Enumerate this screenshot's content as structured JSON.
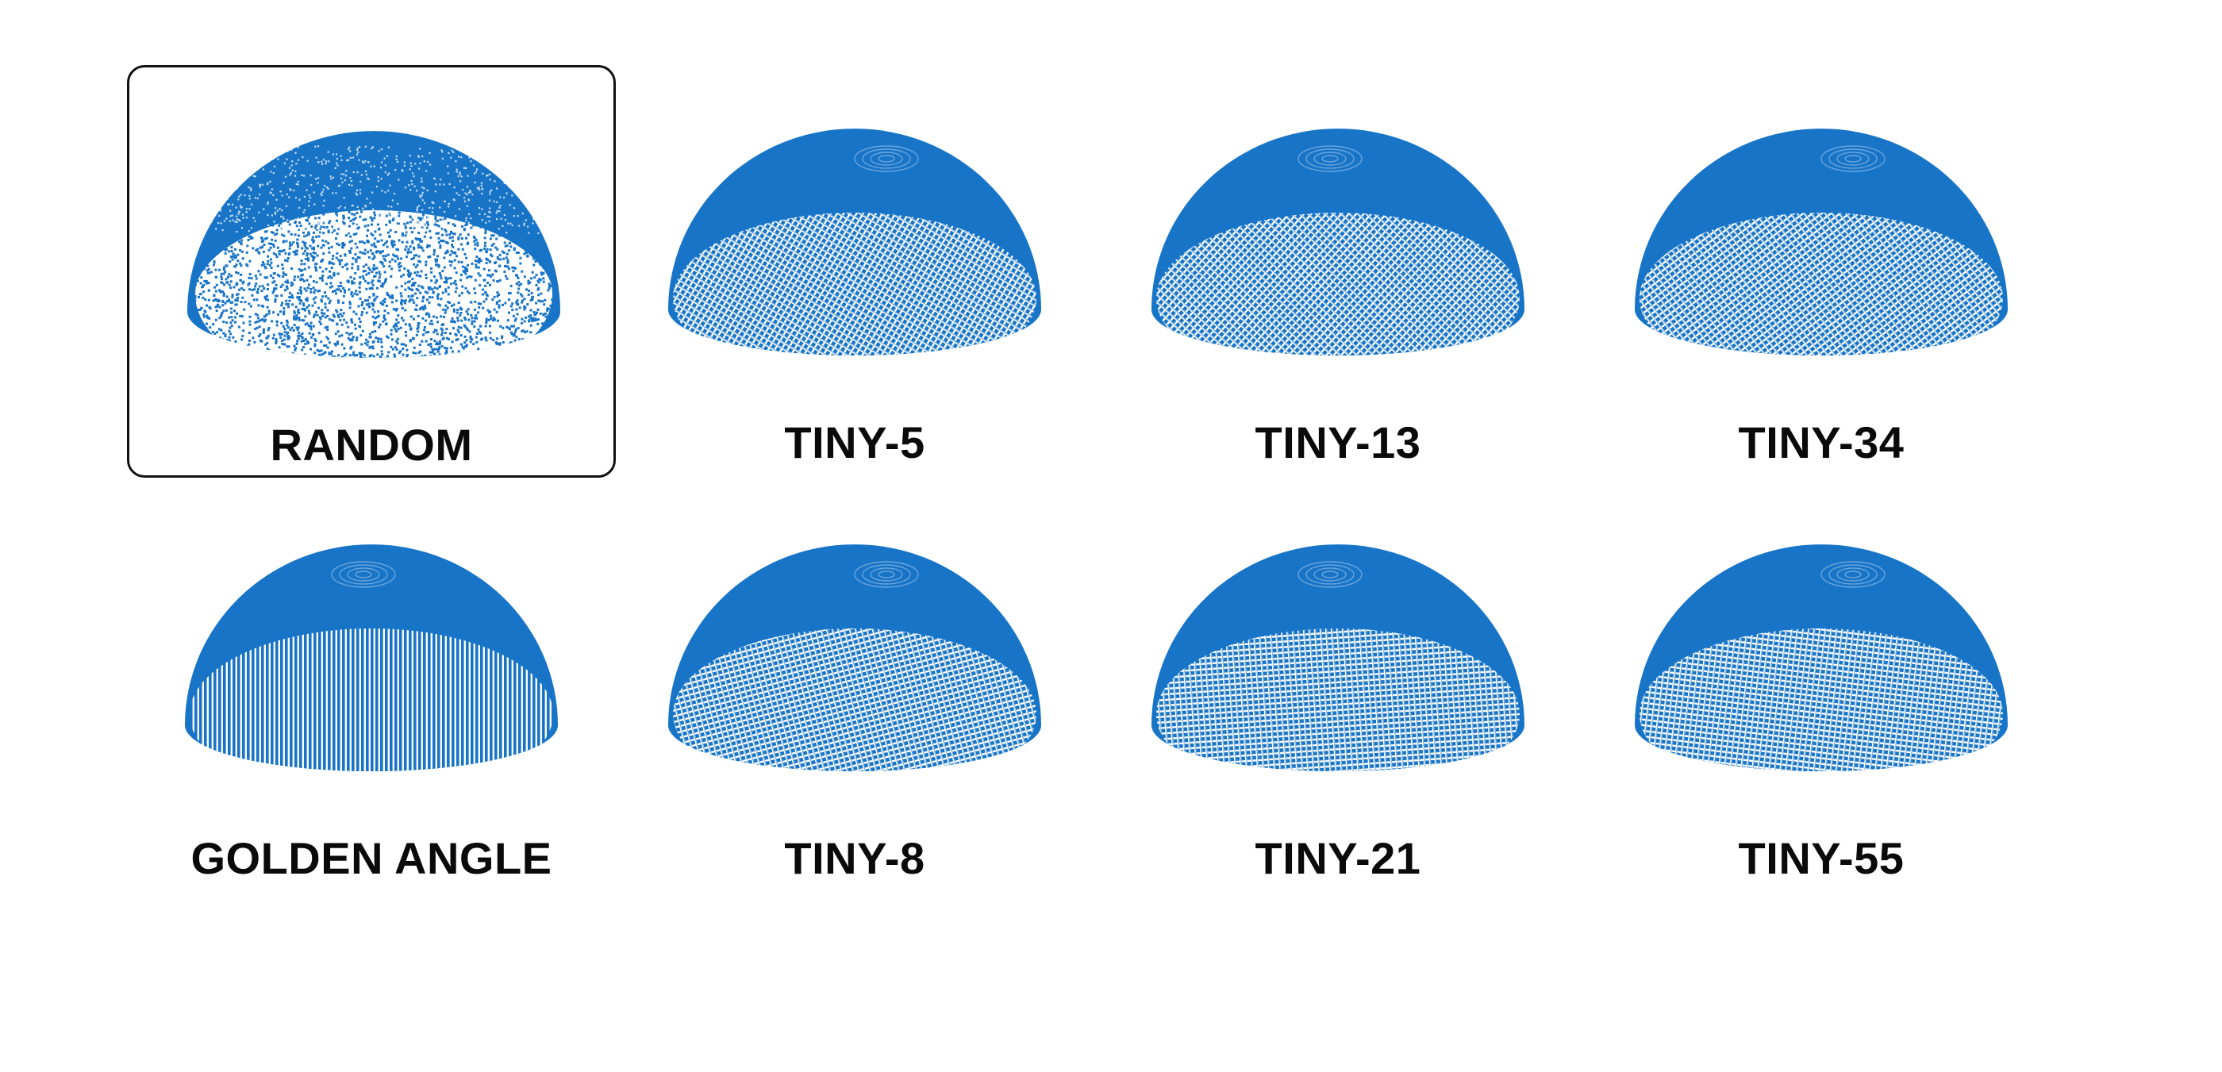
{
  "accent_color": "#1874c7",
  "selected_index": 0,
  "panels": [
    {
      "label": "RANDOM",
      "pattern": "random"
    },
    {
      "label": "TINY-5",
      "pattern": "lattice"
    },
    {
      "label": "TINY-13",
      "pattern": "lattice"
    },
    {
      "label": "TINY-34",
      "pattern": "lattice"
    },
    {
      "label": "GOLDEN ANGLE",
      "pattern": "meridian"
    },
    {
      "label": "TINY-8",
      "pattern": "lattice"
    },
    {
      "label": "TINY-21",
      "pattern": "lattice"
    },
    {
      "label": "TINY-55",
      "pattern": "lattice"
    }
  ]
}
